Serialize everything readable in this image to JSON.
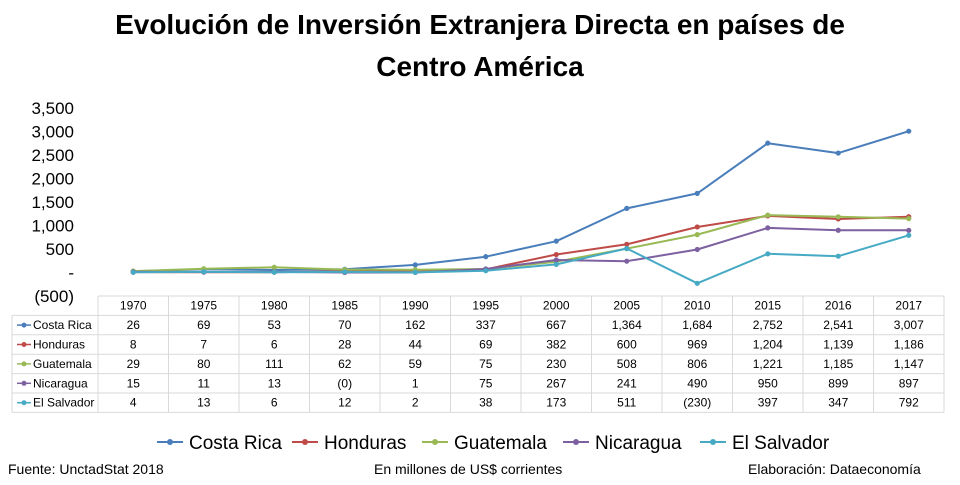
{
  "chart_data": {
    "type": "line",
    "title": "Evolución de Inversión Extranjera Directa en países de Centro América",
    "title_lines": [
      "Evolución de Inversión Extranjera Directa en países de",
      "Centro América"
    ],
    "categories": [
      "1970",
      "1975",
      "1980",
      "1985",
      "1990",
      "1995",
      "2000",
      "2005",
      "2010",
      "2015",
      "2016",
      "2017"
    ],
    "ylim": [
      -500,
      3500
    ],
    "yticks": [
      -500,
      0,
      500,
      1000,
      1500,
      2000,
      2500,
      3000,
      3500
    ],
    "ytick_labels": [
      "(500)",
      "-",
      "500",
      "1,000",
      "1,500",
      "2,000",
      "2,500",
      "3,000",
      "3,500"
    ],
    "grid": false,
    "legend_position": "bottom",
    "data_table": true,
    "series": [
      {
        "name": "Costa Rica",
        "color": "#4a7ebb",
        "values": [
          26,
          69,
          53,
          70,
          162,
          337,
          667,
          1364,
          1684,
          2752,
          2541,
          3007
        ],
        "labels": [
          "26",
          "69",
          "53",
          "70",
          "162",
          "337",
          "667",
          "1,364",
          "1,684",
          "2,752",
          "2,541",
          "3,007"
        ]
      },
      {
        "name": "Honduras",
        "color": "#be4b48",
        "values": [
          8,
          7,
          6,
          28,
          44,
          69,
          382,
          600,
          969,
          1204,
          1139,
          1186
        ],
        "labels": [
          "8",
          "7",
          "6",
          "28",
          "44",
          "69",
          "382",
          "600",
          "969",
          "1,204",
          "1,139",
          "1,186"
        ]
      },
      {
        "name": "Guatemala",
        "color": "#98b954",
        "values": [
          29,
          80,
          111,
          62,
          59,
          75,
          230,
          508,
          806,
          1221,
          1185,
          1147
        ],
        "labels": [
          "29",
          "80",
          "111",
          "62",
          "59",
          "75",
          "230",
          "508",
          "806",
          "1,221",
          "1,185",
          "1,147"
        ]
      },
      {
        "name": "Nicaragua",
        "color": "#7d60a0",
        "values": [
          15,
          11,
          13,
          0,
          1,
          75,
          267,
          241,
          490,
          950,
          899,
          897
        ],
        "labels": [
          "15",
          "11",
          "13",
          "(0)",
          "1",
          "75",
          "267",
          "241",
          "490",
          "950",
          "899",
          "897"
        ]
      },
      {
        "name": "El Salvador",
        "color": "#46aac5",
        "values": [
          4,
          13,
          6,
          12,
          2,
          38,
          173,
          511,
          -230,
          397,
          347,
          792
        ],
        "labels": [
          "4",
          "13",
          "6",
          "12",
          "2",
          "38",
          "173",
          "511",
          "(230)",
          "397",
          "347",
          "792"
        ]
      }
    ]
  },
  "footer": {
    "source": "Fuente: UnctadStat 2018",
    "units": "En millones de US$ corrientes",
    "credit": "Elaboración: Dataeconomía"
  }
}
